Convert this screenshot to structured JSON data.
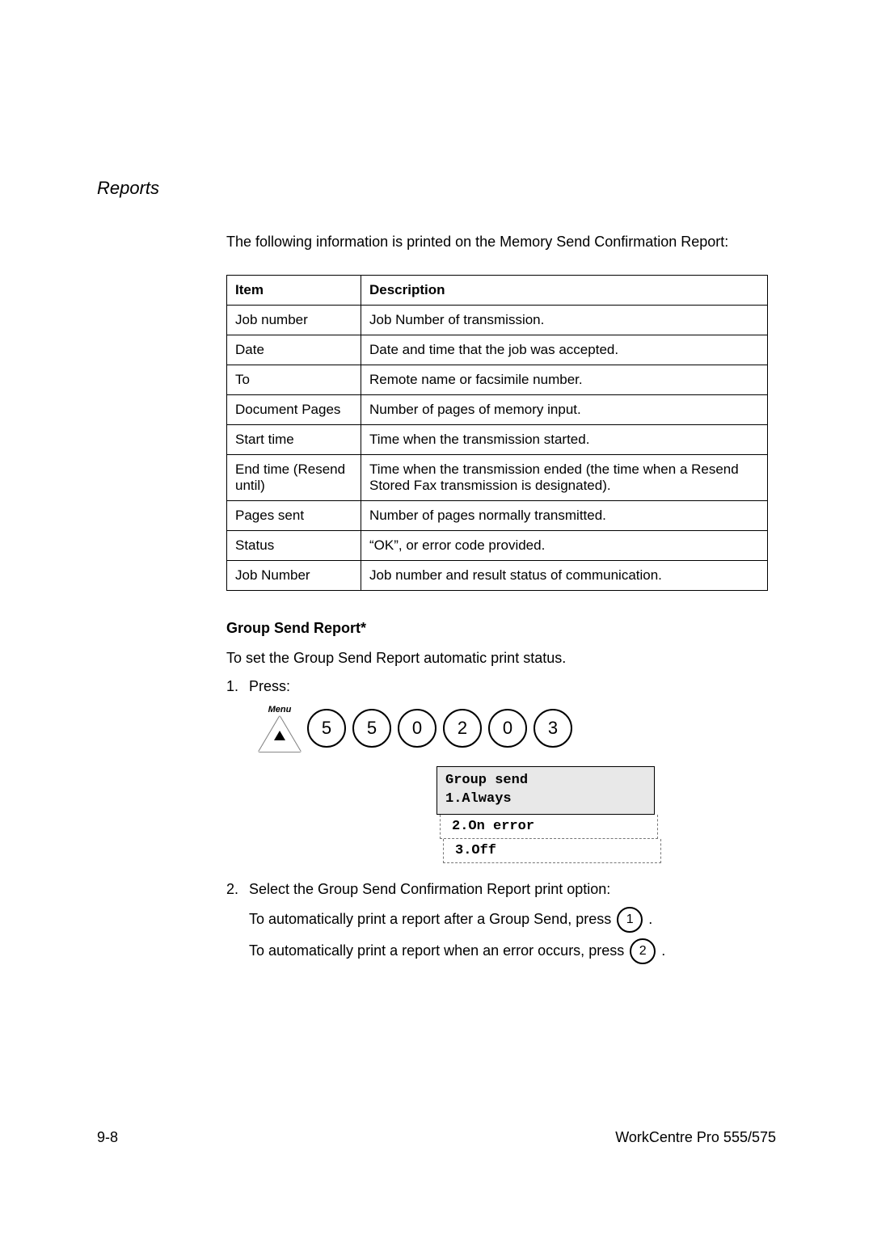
{
  "section_title": "Reports",
  "intro": "The following information is printed on the Memory Send Confirmation Report:",
  "table": {
    "headers": {
      "item": "Item",
      "desc": "Description"
    },
    "rows": [
      {
        "item": "Job number",
        "desc": "Job Number of transmission."
      },
      {
        "item": "Date",
        "desc": "Date and time that the job was accepted."
      },
      {
        "item": "To",
        "desc": "Remote name or facsimile number."
      },
      {
        "item": "Document Pages",
        "desc": "Number of pages of memory input."
      },
      {
        "item": "Start time",
        "desc": "Time when the transmission started."
      },
      {
        "item": "End time (Resend until)",
        "desc": "Time when the transmission ended (the time when a Resend Stored Fax transmission is designated)."
      },
      {
        "item": "Pages sent",
        "desc": "Number of pages normally transmitted."
      },
      {
        "item": "Status",
        "desc": "“OK”, or error code provided."
      },
      {
        "item": "Job Number",
        "desc": "Job number and result status of communication."
      }
    ]
  },
  "subheading": "Group Send Report*",
  "subheading_intro": "To set the Group Send Report automatic print status.",
  "steps": {
    "s1_num": "1.",
    "s1_text": "Press:",
    "s2_num": "2.",
    "s2_text": "Select the Group Send Confirmation Report print option:"
  },
  "keys": {
    "menu_label": "Menu",
    "seq": [
      "5",
      "5",
      "0",
      "2",
      "0",
      "3"
    ]
  },
  "lcd": {
    "l1": "Group send",
    "l2": "1.Always",
    "l3": "2.On error",
    "l4": "3.Off"
  },
  "instructions": {
    "i1_pre": "To automatically print a report after a Group Send, press ",
    "i1_key": "1",
    "i1_post": ".",
    "i2_pre": "To automatically print a report when an error occurs, press ",
    "i2_key": "2",
    "i2_post": "."
  },
  "footer": {
    "left": "9-8",
    "right": "WorkCentre Pro 555/575"
  },
  "colors": {
    "text": "#000000",
    "background": "#ffffff",
    "lcd_bg": "#e8e8e8",
    "dash": "#777777"
  }
}
